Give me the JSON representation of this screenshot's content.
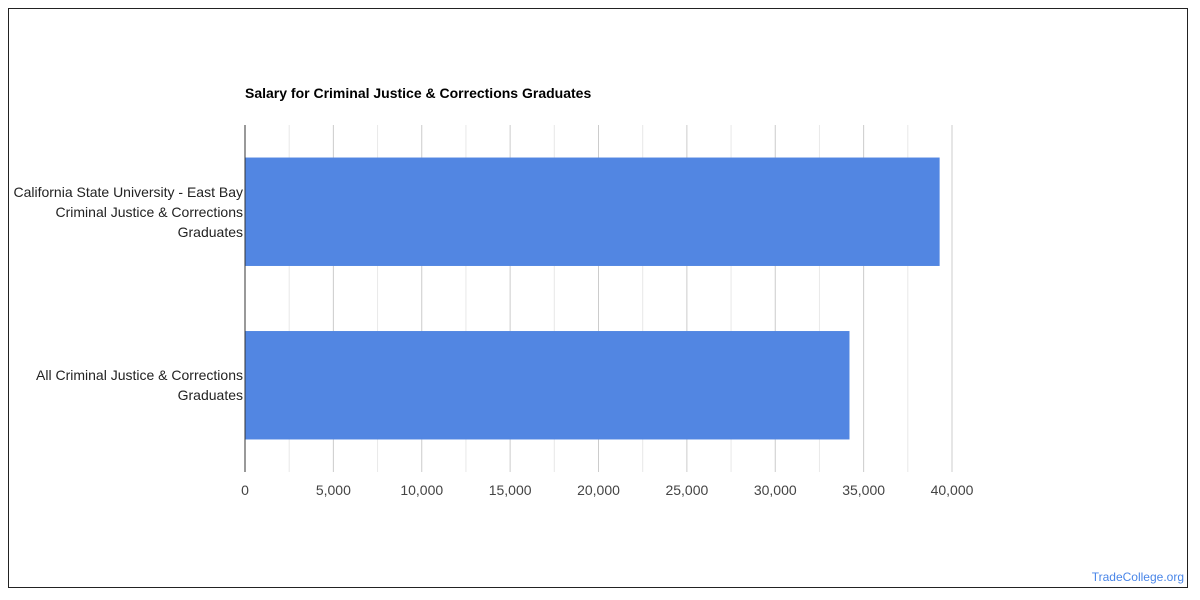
{
  "page": {
    "watermark": "TradeCollege.org"
  },
  "chart_data": {
    "type": "bar",
    "orientation": "horizontal",
    "title": "Salary for Criminal Justice & Corrections Graduates",
    "categories": [
      "California State University - East Bay Criminal Justice & Corrections Graduates",
      "All Criminal Justice & Corrections Graduates"
    ],
    "values": [
      39300,
      34200
    ],
    "xlim": [
      0,
      40000
    ],
    "xticks": [
      "0",
      "5,000",
      "10,000",
      "15,000",
      "20,000",
      "25,000",
      "30,000",
      "35,000",
      "40,000"
    ],
    "grid": true,
    "bar_color": "#5286e2",
    "grid_color": "#cccccc",
    "axis_color": "#333333"
  }
}
